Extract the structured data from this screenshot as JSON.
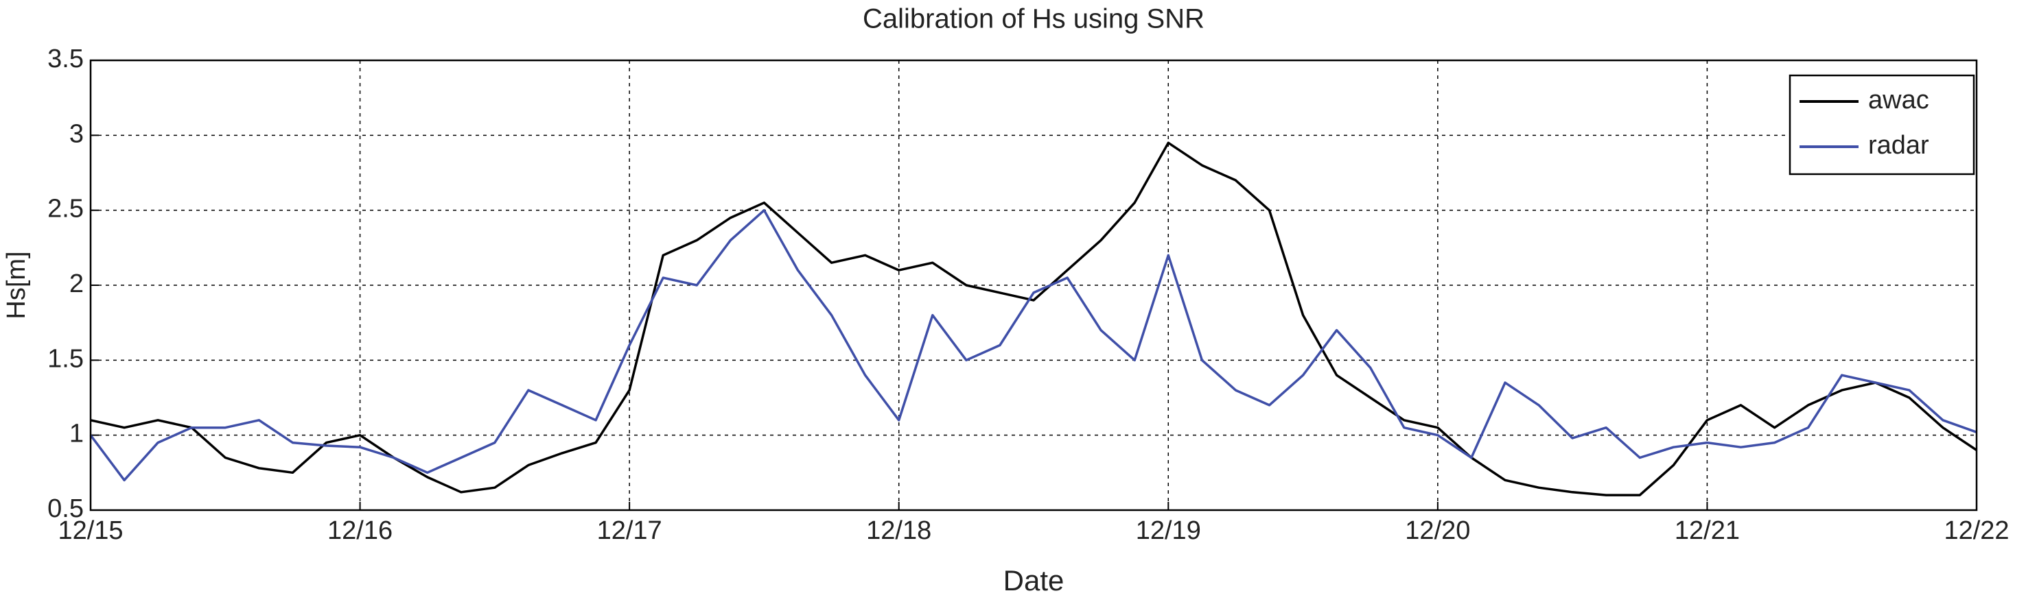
{
  "chart_data": {
    "type": "line",
    "title": "Calibration of Hs using SNR",
    "xlabel": "Date",
    "ylabel": "Hs[m]",
    "x": [
      15.0,
      15.125,
      15.25,
      15.375,
      15.5,
      15.625,
      15.75,
      15.875,
      16.0,
      16.125,
      16.25,
      16.375,
      16.5,
      16.625,
      16.75,
      16.875,
      17.0,
      17.125,
      17.25,
      17.375,
      17.5,
      17.625,
      17.75,
      17.875,
      18.0,
      18.125,
      18.25,
      18.375,
      18.5,
      18.625,
      18.75,
      18.875,
      19.0,
      19.125,
      19.25,
      19.375,
      19.5,
      19.625,
      19.75,
      19.875,
      20.0,
      20.125,
      20.25,
      20.375,
      20.5,
      20.625,
      20.75,
      20.875,
      21.0,
      21.125,
      21.25,
      21.375,
      21.5,
      21.625,
      21.75,
      21.875,
      22.0
    ],
    "series": [
      {
        "name": "awac",
        "color": "#000000",
        "values": [
          1.1,
          1.05,
          1.1,
          1.05,
          0.85,
          0.78,
          0.75,
          0.95,
          1.0,
          0.85,
          0.72,
          0.62,
          0.65,
          0.8,
          0.88,
          0.95,
          1.3,
          2.2,
          2.3,
          2.45,
          2.55,
          2.35,
          2.15,
          2.2,
          2.1,
          2.15,
          2.0,
          1.95,
          1.9,
          2.1,
          2.3,
          2.55,
          2.95,
          2.8,
          2.7,
          2.5,
          1.8,
          1.4,
          1.25,
          1.1,
          1.05,
          0.85,
          0.7,
          0.65,
          0.62,
          0.6,
          0.6,
          0.8,
          1.1,
          1.2,
          1.05,
          1.2,
          1.3,
          1.35,
          1.25,
          1.05,
          0.9
        ]
      },
      {
        "name": "radar",
        "color": "#3f4fa8",
        "values": [
          1.0,
          0.7,
          0.95,
          1.05,
          1.05,
          1.1,
          0.95,
          0.93,
          0.92,
          0.85,
          0.75,
          0.85,
          0.95,
          1.3,
          1.2,
          1.1,
          1.6,
          2.05,
          2.0,
          2.3,
          2.5,
          2.1,
          1.8,
          1.4,
          1.1,
          1.8,
          1.5,
          1.6,
          1.95,
          2.05,
          1.7,
          1.5,
          2.2,
          1.5,
          1.3,
          1.2,
          1.4,
          1.7,
          1.45,
          1.05,
          1.0,
          0.85,
          1.35,
          1.2,
          0.98,
          1.05,
          0.85,
          0.92,
          0.95,
          0.92,
          0.95,
          1.05,
          1.4,
          1.35,
          1.3,
          1.1,
          1.02
        ]
      }
    ],
    "xlim": [
      15,
      22
    ],
    "xticks": [
      {
        "value": 15,
        "label": "12/15"
      },
      {
        "value": 16,
        "label": "12/16"
      },
      {
        "value": 17,
        "label": "12/17"
      },
      {
        "value": 18,
        "label": "12/18"
      },
      {
        "value": 19,
        "label": "12/19"
      },
      {
        "value": 20,
        "label": "12/20"
      },
      {
        "value": 21,
        "label": "12/21"
      },
      {
        "value": 22,
        "label": "12/22"
      }
    ],
    "ylim": [
      0.5,
      3.5
    ],
    "yticks": [
      0.5,
      1,
      1.5,
      2,
      2.5,
      3,
      3.5
    ],
    "grid": true,
    "legend": "upper right"
  }
}
